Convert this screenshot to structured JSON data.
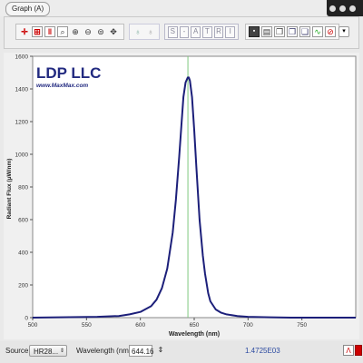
{
  "window": {
    "tab_label": "Graph (A)"
  },
  "toolbar": {
    "zoom_icons": [
      "crosshair-icon",
      "zoom-box-icon",
      "pause-icon",
      "zoom-fit-icon",
      "zoom-in-icon",
      "zoom-out-icon",
      "zoom-reset-icon",
      "pan-icon"
    ],
    "bulb_icons": [
      "bulb-on-icon",
      "bulb-off-icon"
    ],
    "mode_letters": [
      "S",
      "-",
      "A",
      "T",
      "R",
      "I"
    ],
    "file_icons": [
      "save-icon",
      "print-icon",
      "copy-icon",
      "copy-data-icon",
      "export-icon",
      "spectrum-icon",
      "stop-icon"
    ]
  },
  "chart_data": {
    "type": "line",
    "logo_title": "LDP LLC",
    "logo_url": "www.MaxMax.com",
    "xlabel": "Wavelength (nm)",
    "ylabel": "Radiant Flux (μW/nm)",
    "xlim": [
      500,
      800
    ],
    "ylim": [
      0,
      1600
    ],
    "x_ticks": [
      "500",
      "550",
      "600",
      "650",
      "700",
      "750"
    ],
    "x_tick_values": [
      500,
      550,
      600,
      650,
      700,
      750
    ],
    "y_ticks": [
      "0",
      "200",
      "400",
      "600",
      "800",
      "1000",
      "1200",
      "1400",
      "1600"
    ],
    "y_tick_values": [
      0,
      200,
      400,
      600,
      800,
      1000,
      1200,
      1400,
      1600
    ],
    "cursor_wavelength": 644.16,
    "series": [
      {
        "color": "#1c1f7a",
        "x": [
          500,
          560,
          580,
          590,
          600,
          610,
          615,
          620,
          625,
          630,
          633,
          636,
          638,
          640,
          642,
          644,
          645,
          646,
          648,
          650,
          652,
          655,
          658,
          660,
          663,
          665,
          670,
          675,
          680,
          690,
          700,
          720,
          740,
          800
        ],
        "y": [
          0,
          5,
          10,
          20,
          35,
          70,
          110,
          180,
          300,
          520,
          720,
          980,
          1170,
          1350,
          1440,
          1470,
          1470,
          1450,
          1350,
          1150,
          920,
          600,
          380,
          270,
          150,
          100,
          50,
          30,
          20,
          10,
          5,
          2,
          0,
          0
        ]
      }
    ],
    "grid": false,
    "legend": "none"
  },
  "status": {
    "source_label": "Source:",
    "source_value": "HR28...",
    "wavelength_label": "Wavelength (nm):",
    "wavelength_value": "644.16",
    "readout": "1.4725E03"
  },
  "colors": {
    "line": "#1c1f7a",
    "cursor": "#7ec87e",
    "plot_bg": "#ffffff",
    "logo": "#222a80"
  }
}
